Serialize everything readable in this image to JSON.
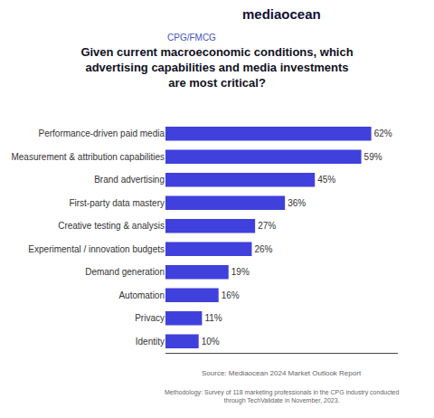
{
  "chart_data": {
    "type": "bar",
    "orientation": "horizontal",
    "title": "Given current macroeconomic conditions, which advertising capabilities and media investments are most critical?",
    "subtitle": "CPG/FMCG",
    "annotations": [
      "mediaocean",
      "Source: Mediaocean 2024 Market Outlook Report",
      "Methodology: Survey of 118 marketing professionals in the CPG industry conducted through TechValidate in November, 2023."
    ],
    "categories": [
      "Performance-driven paid media",
      "Measurement & attribution capabilities",
      "Brand advertising",
      "First-party data mastery",
      "Creative testing & analysis",
      "Experimental / innovation budgets",
      "Demand generation",
      "Automation",
      "Privacy",
      "Identity"
    ],
    "values": [
      62,
      59,
      45,
      36,
      27,
      26,
      19,
      16,
      11,
      10
    ],
    "value_labels": [
      "62%",
      "59%",
      "45%",
      "36%",
      "27%",
      "26%",
      "19%",
      "16%",
      "11%",
      "10%"
    ],
    "data_labels": true,
    "color": "#4040dd",
    "xlim": [
      0,
      70
    ],
    "grid": false,
    "tick_labels": "y"
  }
}
